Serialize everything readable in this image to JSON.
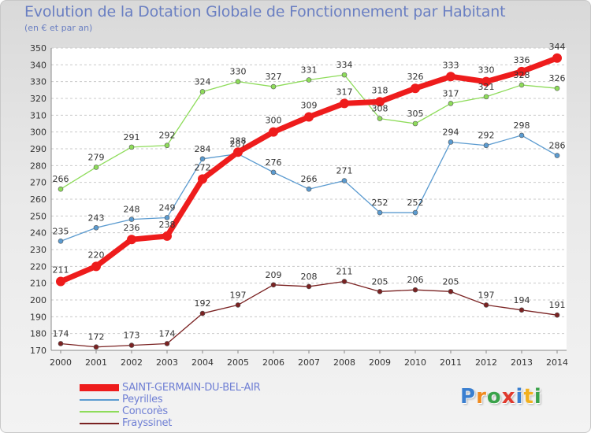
{
  "title": "Evolution de la Dotation Globale de Fonctionnement par Habitant",
  "subtitle": "(en € et par an)",
  "logo": {
    "text": "Proxiti",
    "colors": [
      "#3a7fd0",
      "#f08a1e",
      "#3aa24a",
      "#e03a2e",
      "#3a7fd0",
      "#f2b01e",
      "#3aa24a"
    ]
  },
  "chart_data": {
    "type": "line",
    "title": "Evolution de la Dotation Globale de Fonctionnement par Habitant",
    "ylabel": "(en € et par an)",
    "xlabel": "",
    "ylim": [
      170,
      350
    ],
    "yticks": [
      170,
      180,
      190,
      200,
      210,
      220,
      230,
      240,
      250,
      260,
      270,
      280,
      290,
      300,
      310,
      320,
      330,
      340,
      350
    ],
    "categories": [
      "2000",
      "2001",
      "2002",
      "2003",
      "2004",
      "2005",
      "2006",
      "2007",
      "2008",
      "2009",
      "2010",
      "2011",
      "2012",
      "2013",
      "2014"
    ],
    "grid": "horizontal",
    "legend_position": "bottom-left",
    "series": [
      {
        "name": "SAINT-GERMAIN-DU-BEL-AIR",
        "color": "#ee1c1c",
        "emphasis": true,
        "values": [
          211,
          220,
          236,
          238,
          272,
          288,
          300,
          309,
          317,
          318,
          326,
          333,
          330,
          336,
          344
        ],
        "labels": [
          "211",
          "220",
          "236",
          "238",
          "272",
          "288",
          "300",
          "309",
          "317",
          "318",
          "326",
          "333",
          "330",
          "336",
          "344"
        ]
      },
      {
        "name": "Peyrilles",
        "color": "#5b9bd0",
        "emphasis": false,
        "values": [
          235,
          243,
          248,
          249,
          284,
          287,
          276,
          266,
          271,
          252,
          252,
          294,
          292,
          298,
          286
        ],
        "labels": [
          "235",
          "243",
          "248",
          "249",
          "284",
          "287",
          "276",
          "266",
          "271",
          "252",
          "252",
          "294",
          "292",
          "298",
          "286"
        ]
      },
      {
        "name": "Concorès",
        "color": "#8edc5a",
        "emphasis": false,
        "values": [
          266,
          279,
          291,
          292,
          324,
          330,
          327,
          331,
          334,
          308,
          305,
          317,
          321,
          328,
          326
        ],
        "labels": [
          "266",
          "279",
          "291",
          "292",
          "324",
          "330",
          "327",
          "331",
          "334",
          "308",
          "305",
          "317",
          "321",
          "328",
          "326"
        ]
      },
      {
        "name": "Frayssinet",
        "color": "#7a2222",
        "emphasis": false,
        "values": [
          174,
          172,
          173,
          174,
          192,
          197,
          209,
          208,
          211,
          205,
          206,
          205,
          197,
          194,
          191
        ],
        "labels": [
          "174",
          "172",
          "173",
          "174",
          "192",
          "197",
          "209",
          "208",
          "211",
          "205",
          "206",
          "205",
          "197",
          "194",
          "191"
        ]
      }
    ]
  }
}
